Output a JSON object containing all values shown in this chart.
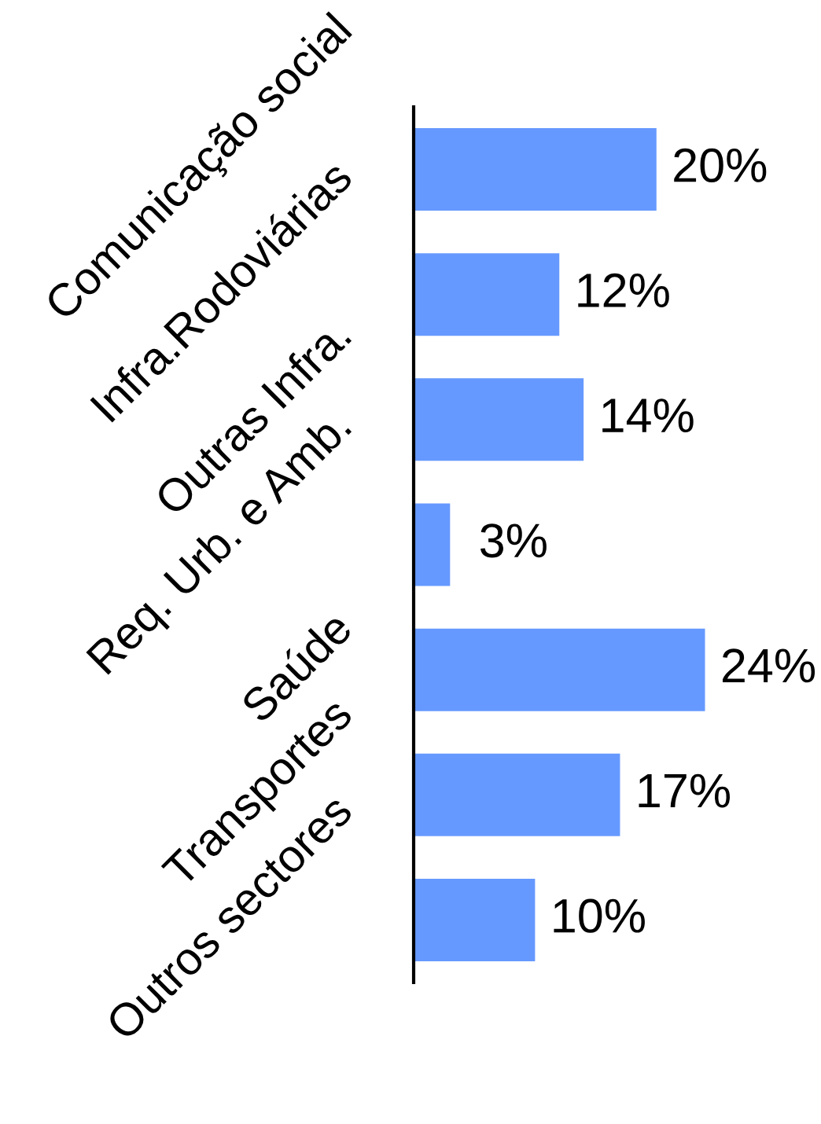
{
  "chart_data": {
    "type": "bar",
    "orientation": "horizontal",
    "categories": [
      "Comunicação social",
      "Infra.Rodoviárias",
      "Outras Infra.",
      "Req. Urb. e Amb.",
      "Saúde",
      "Transportes",
      "Outros sectores"
    ],
    "values": [
      20,
      12,
      14,
      3,
      24,
      17,
      10
    ],
    "value_labels": [
      "20%",
      "12%",
      "14%",
      "3%",
      "24%",
      "17%",
      "10%"
    ],
    "color": "#6699ff",
    "tick_labels": "y"
  }
}
